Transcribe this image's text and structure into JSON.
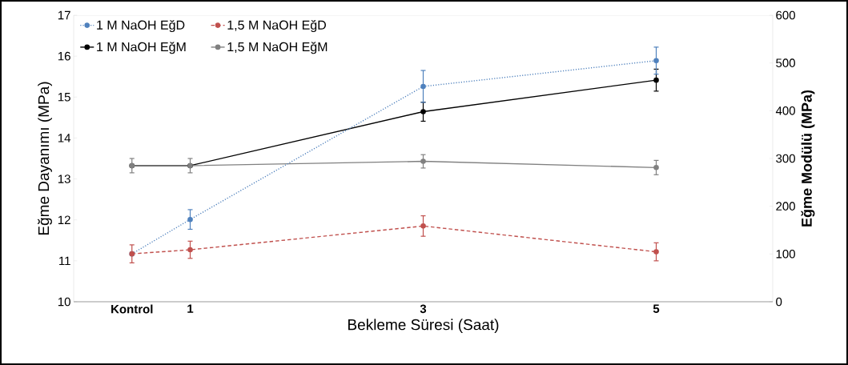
{
  "chart_data": {
    "type": "line",
    "xlabel": "Bekleme Süresi (Saat)",
    "ylabel": "Eğme Dayanımı (MPa)",
    "y2label": "Eğme Modülü (MPa)",
    "x": [
      0.5,
      1,
      3,
      5
    ],
    "xlim": [
      0,
      6
    ],
    "xticks": [
      {
        "value": 0.5,
        "label": "Kontrol"
      },
      1,
      3,
      5
    ],
    "ylim": [
      10,
      17
    ],
    "yticks": [
      10,
      11,
      12,
      13,
      14,
      15,
      16,
      17
    ],
    "y2lim": [
      0,
      600
    ],
    "y2ticks": [
      0,
      100,
      200,
      300,
      400,
      500,
      600
    ],
    "legend": "top left",
    "marker": "circle",
    "series": [
      {
        "name": "1 M NaOH EğD",
        "color": "#4f81bd",
        "line_style": "dotted",
        "values": [
          11.17,
          12.01,
          15.26,
          15.89
        ],
        "errors": [
          null,
          0.24,
          0.39,
          0.33
        ]
      },
      {
        "name": "1,5 M NaOH EğD",
        "color": "#c0504d",
        "line_style": "dashed",
        "values": [
          11.17,
          11.27,
          11.85,
          11.22
        ],
        "errors": [
          0.22,
          0.21,
          0.25,
          0.22
        ]
      },
      {
        "name": "1 M NaOH EğM",
        "color": "#000000",
        "line_style": "solid",
        "axis": "y2",
        "values": [
          285,
          285,
          398,
          464
        ],
        "errors": [
          null,
          null,
          20,
          23
        ]
      },
      {
        "name": "1,5 M NaOH EğM",
        "color": "#808080",
        "line_style": "solid",
        "axis": "y2",
        "values": [
          285,
          285,
          294,
          281
        ],
        "errors": [
          15,
          15,
          14,
          15
        ]
      }
    ]
  }
}
